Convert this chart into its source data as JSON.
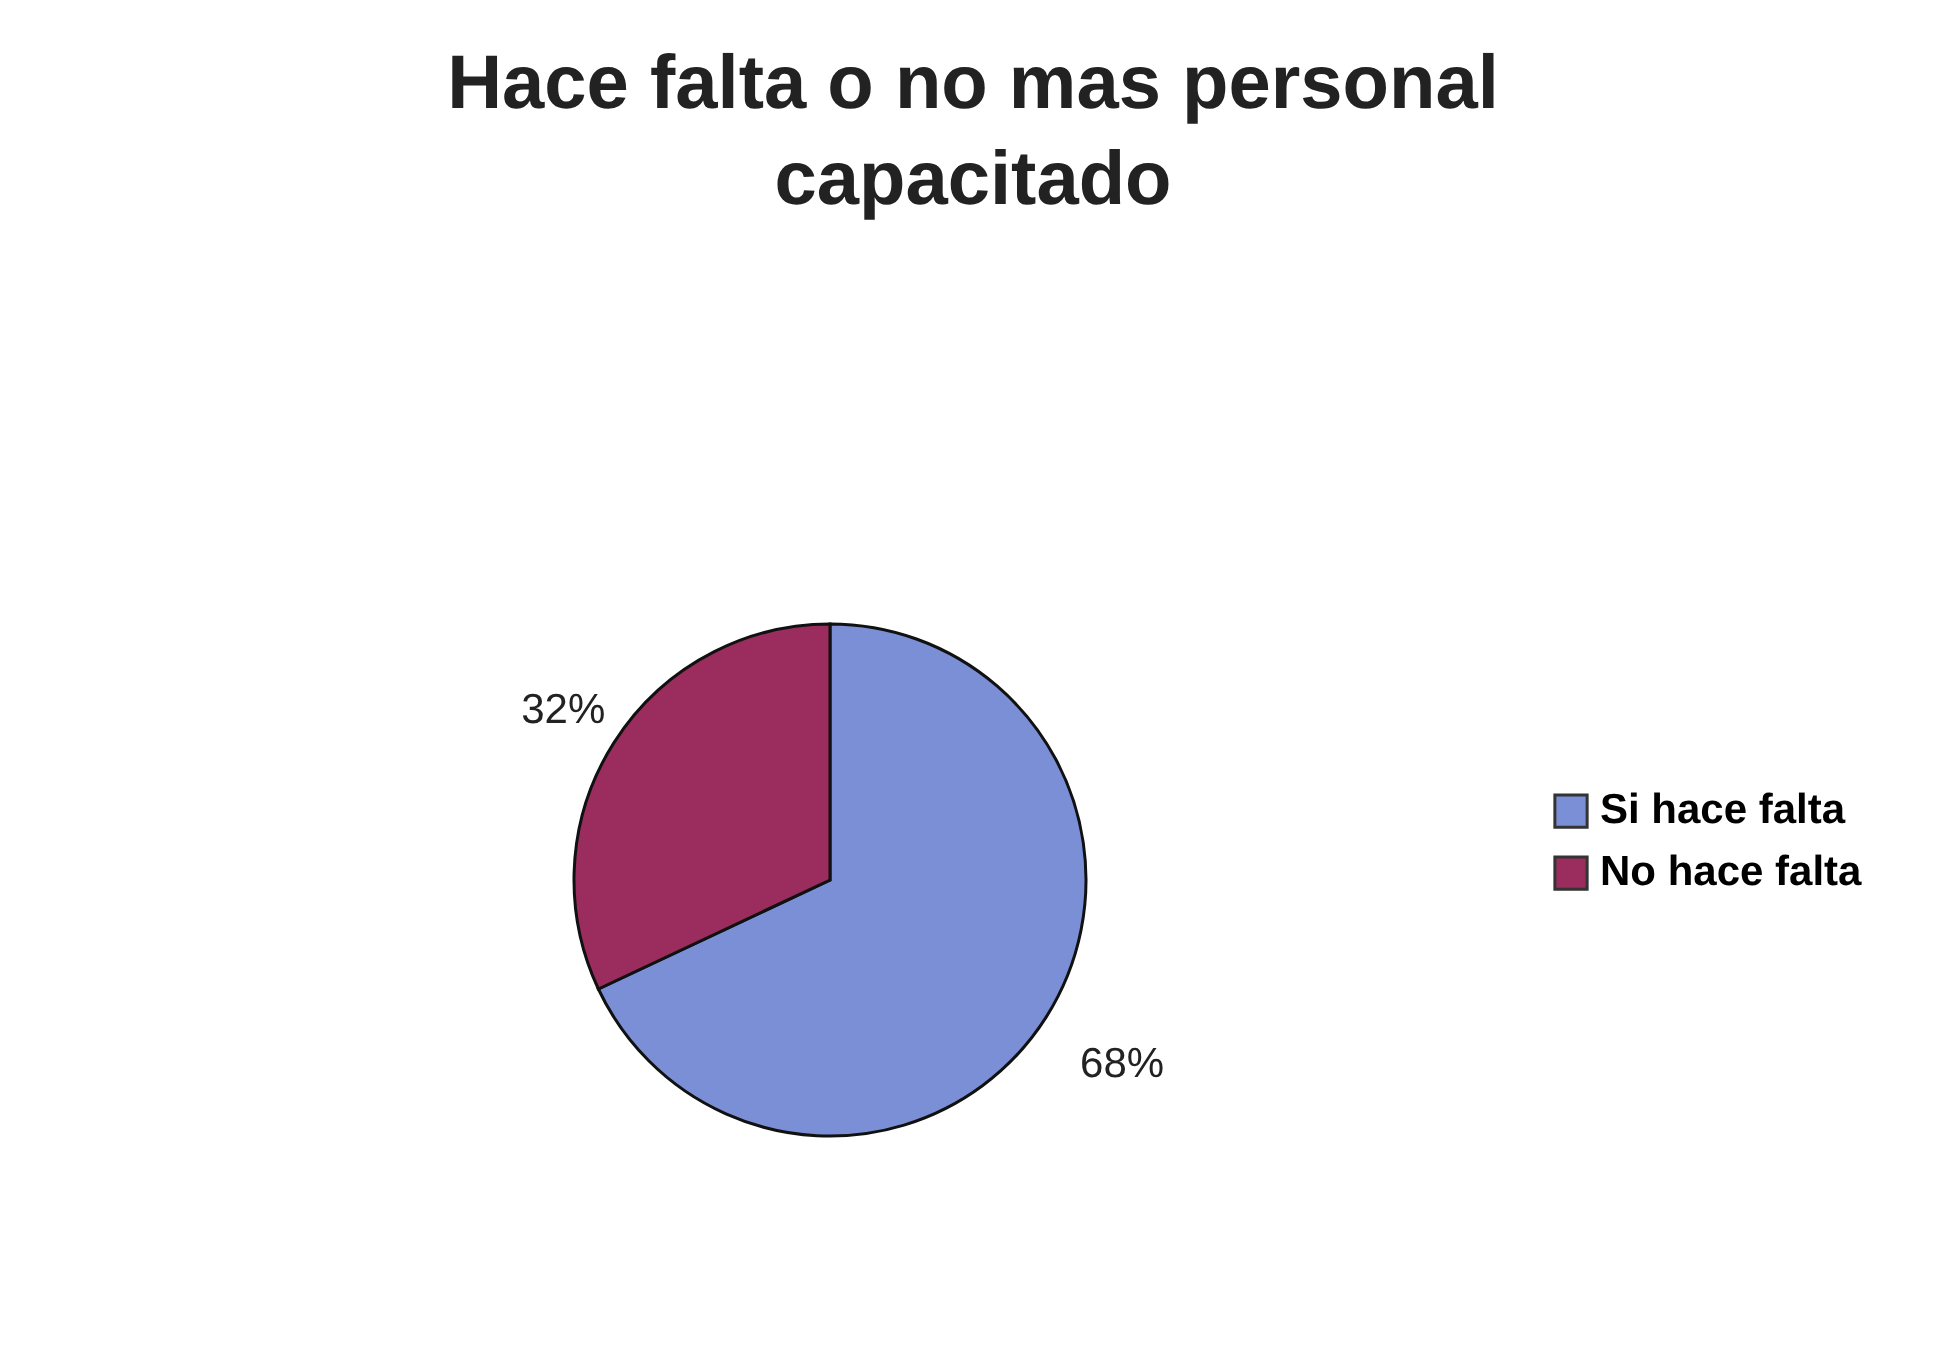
{
  "chart_data": {
    "type": "pie",
    "title": "Hace falta o no mas personal capacitado",
    "categories": [
      "Si hace falta",
      "No hace falta"
    ],
    "values": [
      68,
      32
    ],
    "colors": [
      "#7b8fd6",
      "#9b2d5e"
    ],
    "value_labels": [
      "68%",
      "32%"
    ],
    "legend": "right"
  }
}
